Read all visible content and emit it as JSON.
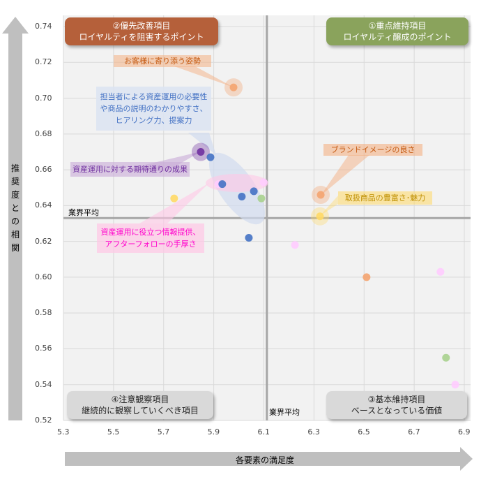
{
  "chart_data": {
    "type": "scatter",
    "xlabel": "各要素の満足度",
    "ylabel": "推奨度との相関",
    "xlim": [
      5.3,
      6.9
    ],
    "ylim": [
      0.52,
      0.74
    ],
    "xticks": [
      "5.3",
      "5.5",
      "5.7",
      "5.9",
      "6.1",
      "6.3",
      "6.5",
      "6.7",
      "6.9"
    ],
    "yticks": [
      "0.74",
      "0.72",
      "0.70",
      "0.68",
      "0.66",
      "0.64",
      "0.62",
      "0.60",
      "0.58",
      "0.56",
      "0.54",
      "0.52"
    ],
    "grid": true,
    "average": {
      "x": 6.112,
      "y": 0.633,
      "label_x": "業界平均",
      "label_y": "業界平均"
    },
    "colors": {
      "orange": "#f4a470",
      "blue": "#4472c4",
      "purple": "#7030a0",
      "green": "#a9d18e",
      "yellow": "#ffd966",
      "pink": "#ffccff"
    },
    "points": [
      {
        "x": 5.979,
        "y": 0.706,
        "color": "orange",
        "halo": true
      },
      {
        "x": 5.848,
        "y": 0.67,
        "color": "purple",
        "halo": true
      },
      {
        "x": 5.887,
        "y": 0.667,
        "color": "blue"
      },
      {
        "x": 5.918,
        "y": 0.652,
        "color": "pink"
      },
      {
        "x": 5.934,
        "y": 0.652,
        "color": "blue"
      },
      {
        "x": 6.012,
        "y": 0.645,
        "color": "blue"
      },
      {
        "x": 6.06,
        "y": 0.648,
        "color": "blue"
      },
      {
        "x": 6.09,
        "y": 0.644,
        "color": "green"
      },
      {
        "x": 6.099,
        "y": 0.653,
        "color": "pink"
      },
      {
        "x": 5.742,
        "y": 0.644,
        "color": "yellow"
      },
      {
        "x": 6.04,
        "y": 0.622,
        "color": "blue"
      },
      {
        "x": 6.327,
        "y": 0.646,
        "color": "orange",
        "halo": true
      },
      {
        "x": 6.324,
        "y": 0.634,
        "color": "yellow",
        "halo": true
      },
      {
        "x": 6.224,
        "y": 0.618,
        "color": "pink"
      },
      {
        "x": 6.51,
        "y": 0.6,
        "color": "orange"
      },
      {
        "x": 6.805,
        "y": 0.603,
        "color": "pink"
      },
      {
        "x": 6.827,
        "y": 0.555,
        "color": "green"
      },
      {
        "x": 6.864,
        "y": 0.54,
        "color": "pink"
      }
    ]
  },
  "quadrants": {
    "q1": {
      "line1": "①重点維持項目",
      "line2": "ロイヤルティ醸成のポイント"
    },
    "q2": {
      "line1": "②優先改善項目",
      "line2": "ロイヤルティを阻害するポイント"
    },
    "q3": {
      "line1": "③基本維持項目",
      "line2": "ベースとなっている価値"
    },
    "q4": {
      "line1": "④注意観察項目",
      "line2": "継続的に観察していくべき項目"
    }
  },
  "callouts": {
    "customer": "お客様に寄り添う姿勢",
    "staff1": "担当者による資産運用の必要性",
    "staff2": "や商品の説明のわかりやすさ、",
    "staff3": "ヒアリング力、提案力",
    "expect": "資産運用に対する期待通りの成果",
    "info1": "資産運用に役立つ情報提供、",
    "info2": "アフターフォローの手厚さ",
    "brand": "ブランドイメージの良さ",
    "products": "取扱商品の豊富さ･魅力"
  }
}
